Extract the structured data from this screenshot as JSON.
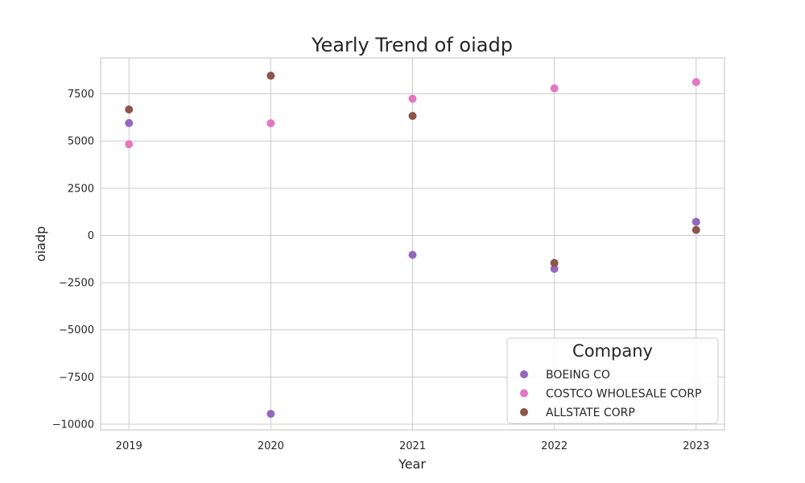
{
  "chart_data": {
    "type": "scatter",
    "title": "Yearly Trend of oiadp",
    "xlabel": "Year",
    "ylabel": "oiadp",
    "x": [
      2019,
      2020,
      2021,
      2022,
      2023
    ],
    "xlim": [
      2018.8,
      2023.2
    ],
    "ylim": [
      -10300,
      9400
    ],
    "yticks": [
      -10000,
      -7500,
      -5000,
      -2500,
      0,
      2500,
      5000,
      7500
    ],
    "grid": true,
    "legend": {
      "title": "Company",
      "placement": "bottom-right"
    },
    "series": [
      {
        "name": "BOEING CO",
        "color": "#9467bd",
        "values": [
          5950,
          -9450,
          -1030,
          -1770,
          720
        ]
      },
      {
        "name": "COSTCO WHOLESALE CORP",
        "color": "#e377c2",
        "values": [
          4830,
          5940,
          7240,
          7790,
          8120
        ]
      },
      {
        "name": "ALLSTATE CORP",
        "color": "#8c564b",
        "values": [
          6670,
          8460,
          6330,
          -1460,
          290
        ]
      }
    ]
  }
}
